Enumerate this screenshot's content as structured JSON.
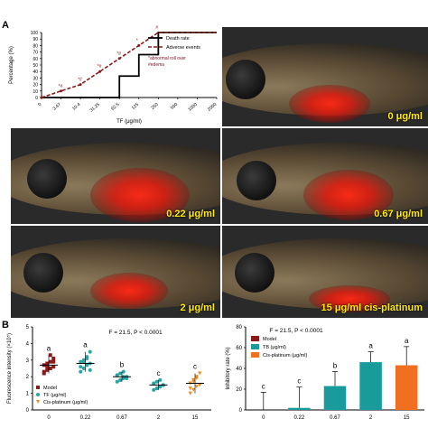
{
  "panel_a": {
    "letter": "A",
    "chart": {
      "y_label": "Percentage (%)",
      "x_label": "TF (μg/ml)",
      "y_ticks": [
        "0",
        "10",
        "20",
        "30",
        "40",
        "50",
        "60",
        "70",
        "80",
        "90",
        "100"
      ],
      "x_ticks": [
        "0",
        "3.47",
        "10.4",
        "31.25",
        "62.5",
        "125",
        "250",
        "500",
        "1000",
        "2000"
      ],
      "legend": {
        "death": "Death rate",
        "adverse": "Adverse events"
      },
      "notes": [
        {
          "symbol": "*",
          "text": "abnormal roll over",
          "color": "#7a1020"
        },
        {
          "symbol": "#",
          "text": "edema",
          "color": "#7a1020"
        }
      ],
      "annotations": [
        "*#",
        "*#",
        "*#",
        "*#",
        "*",
        "#"
      ]
    },
    "fish_labels": [
      "0 μg/ml",
      "0.22 μg/ml",
      "0.67 μg/ml",
      "2 μg/ml",
      "15 μg/ml cis-platinum"
    ]
  },
  "panel_b": {
    "letter": "B",
    "left": {
      "y_label": "Fluorescence intensity (×10⁵)",
      "y_ticks": [
        "0",
        "1",
        "2",
        "3",
        "4",
        "5"
      ],
      "x_ticks": [
        "0",
        "0.22",
        "0.67",
        "2",
        "15"
      ],
      "stat": "F = 21.5, P < 0.0001",
      "legend": [
        "Model",
        "TF (μg/ml)",
        "Cis-platinum (μg/ml)"
      ],
      "letters": [
        "a",
        "a",
        "b",
        "c",
        "c"
      ],
      "colors": {
        "model": "#8b1a1a",
        "tf": "#2aa3a3",
        "cis": "#f08a1c"
      }
    },
    "right": {
      "y_label": "Inhibitory rate (%)",
      "y_ticks": [
        "0",
        "20",
        "40",
        "60",
        "80"
      ],
      "x_ticks": [
        "0",
        "0.22",
        "0.67",
        "2",
        "15"
      ],
      "stat": "F = 21.5, P < 0.0001",
      "legend": [
        "Model",
        "TB (μg/ml)",
        "Cis-platinum (μg/ml)"
      ],
      "letters": [
        "c",
        "c",
        "b",
        "a",
        "a"
      ],
      "colors": {
        "model": "#8b1a1a",
        "tb": "#1a9b9b",
        "cis": "#f07020"
      }
    }
  },
  "chart_data": [
    {
      "type": "line",
      "x": [
        "0",
        "3.47",
        "10.4",
        "31.25",
        "62.5",
        "125",
        "250",
        "500",
        "1000",
        "2000"
      ],
      "series": [
        {
          "name": "Death rate",
          "values": [
            0,
            0,
            0,
            0,
            33,
            66,
            100,
            100,
            100,
            100
          ]
        },
        {
          "name": "Adverse events",
          "values": [
            0,
            10,
            20,
            40,
            60,
            80,
            100,
            100,
            100,
            100
          ]
        }
      ],
      "xlabel": "TF (μg/ml)",
      "ylabel": "Percentage (%)",
      "ylim": [
        0,
        100
      ]
    },
    {
      "type": "scatter",
      "categories": [
        "0",
        "0.22",
        "0.67",
        "2",
        "15"
      ],
      "series": [
        {
          "name": "Model",
          "category": "0",
          "mean": 2.7,
          "values": [
            2.2,
            2.4,
            2.5,
            2.6,
            2.7,
            2.8,
            2.9,
            3.1,
            2.3,
            2.6,
            3.3,
            2.9
          ]
        },
        {
          "name": "TF (μg/ml)",
          "category": "0.22",
          "mean": 2.8,
          "values": [
            2.3,
            2.5,
            2.7,
            2.8,
            2.9,
            3.0,
            3.2,
            3.5,
            2.6,
            2.9,
            3.1,
            2.4
          ]
        },
        {
          "name": "TF (μg/ml)",
          "category": "0.67",
          "mean": 2.0,
          "values": [
            1.7,
            1.8,
            1.9,
            2.0,
            2.1,
            2.2,
            2.0,
            1.9,
            2.1,
            1.8,
            2.3,
            2.0
          ]
        },
        {
          "name": "TF (μg/ml)",
          "category": "2",
          "mean": 1.5,
          "values": [
            1.2,
            1.3,
            1.4,
            1.5,
            1.6,
            1.7,
            1.4,
            1.5,
            1.6,
            1.3,
            1.8,
            1.5
          ]
        },
        {
          "name": "Cis-platinum (μg/ml)",
          "category": "15",
          "mean": 1.6,
          "values": [
            1.0,
            1.2,
            1.4,
            1.5,
            1.6,
            1.8,
            2.0,
            2.2,
            1.3,
            1.7,
            1.9,
            1.5
          ]
        }
      ],
      "ylabel": "Fluorescence intensity (×10⁵)",
      "ylim": [
        0,
        5
      ]
    },
    {
      "type": "bar",
      "categories": [
        "0",
        "0.22",
        "0.67",
        "2",
        "15"
      ],
      "values": [
        0,
        2,
        23,
        46,
        43
      ],
      "errors": [
        17,
        20,
        14,
        10,
        18
      ],
      "ylabel": "Inhibitory rate (%)",
      "ylim": [
        0,
        80
      ]
    }
  ]
}
